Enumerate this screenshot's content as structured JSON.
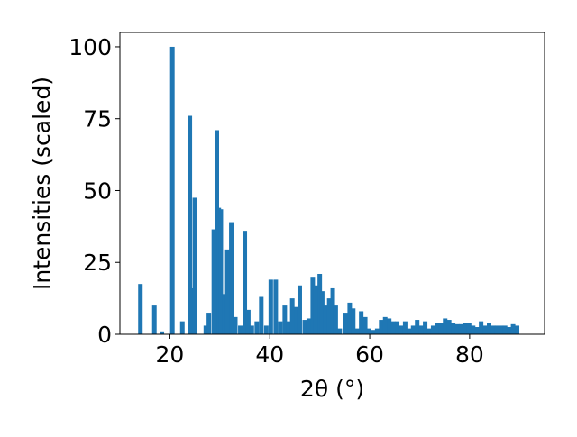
{
  "chart_data": {
    "type": "bar",
    "xlabel": "2θ (°)",
    "ylabel": "Intensities (scaled)",
    "xlim": [
      10,
      95
    ],
    "ylim": [
      0,
      105
    ],
    "xticks": [
      20,
      40,
      60,
      80
    ],
    "yticks": [
      0,
      25,
      50,
      75,
      100
    ],
    "grid": false,
    "bar_color": "#1f77b4",
    "bar_width": 0.9,
    "x": [
      14.1,
      16.9,
      18.4,
      20.5,
      22.5,
      24.0,
      24.5,
      25.0,
      27.2,
      27.8,
      28.8,
      29.4,
      29.8,
      30.2,
      31.0,
      31.5,
      32.3,
      33.1,
      34.1,
      35.0,
      35.7,
      36.4,
      37.4,
      38.3,
      39.3,
      40.2,
      41.2,
      42.1,
      43.0,
      43.8,
      44.5,
      45.3,
      46.0,
      47.0,
      47.8,
      48.6,
      49.2,
      50.0,
      50.5,
      51.2,
      51.9,
      52.6,
      53.2,
      54.0,
      55.2,
      56.0,
      56.7,
      57.5,
      58.3,
      59.1,
      59.9,
      60.7,
      61.5,
      62.3,
      63.1,
      63.9,
      64.7,
      65.5,
      66.3,
      67.1,
      67.9,
      68.7,
      69.5,
      70.3,
      71.1,
      71.9,
      72.7,
      73.5,
      74.3,
      75.1,
      75.9,
      76.7,
      77.5,
      78.3,
      79.1,
      79.9,
      80.7,
      81.5,
      82.3,
      83.1,
      83.9,
      84.7,
      85.5,
      86.3,
      87.1,
      87.9,
      88.7,
      89.5
    ],
    "values": [
      17.5,
      10,
      1,
      100,
      4.5,
      76,
      16,
      47.5,
      3,
      7.5,
      36.5,
      71,
      44,
      43.5,
      14,
      29.5,
      39,
      6,
      3,
      36,
      8.5,
      3,
      4.5,
      13,
      3,
      19,
      19,
      4.5,
      10,
      4.5,
      12.5,
      9.5,
      17,
      5,
      5.5,
      20,
      17,
      21,
      15,
      10,
      12.5,
      16,
      10,
      2,
      7.5,
      11,
      9,
      2,
      8,
      6,
      2,
      1.5,
      2,
      5,
      6,
      5.5,
      4.5,
      4.5,
      3,
      4.5,
      2,
      3,
      5,
      3,
      4.5,
      2,
      3,
      4,
      4,
      5.5,
      5,
      4,
      3.5,
      3.5,
      4,
      4,
      3,
      2.5,
      4.5,
      3,
      4,
      3,
      3,
      3,
      3,
      2.5,
      3.5,
      3
    ]
  }
}
